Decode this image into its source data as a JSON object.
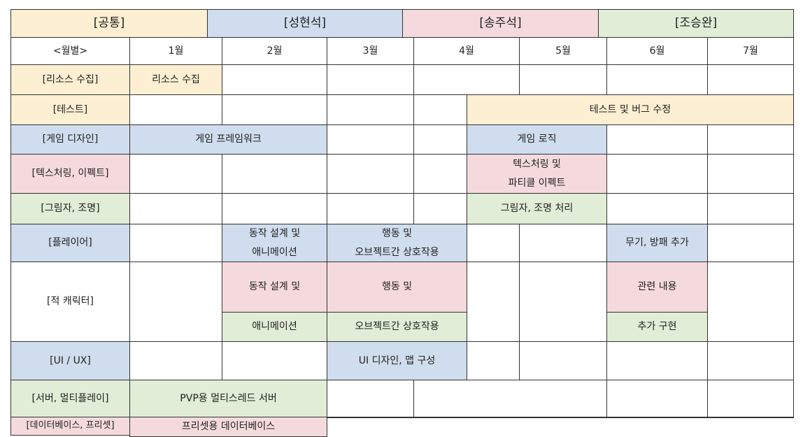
{
  "team_headers": [
    {
      "label": "[공통]",
      "color": "gold"
    },
    {
      "label": "[성현석]",
      "color": "blue"
    },
    {
      "label": "[송주석]",
      "color": "pink"
    },
    {
      "label": "[조승완]",
      "color": "green"
    }
  ],
  "month_row": {
    "label": "<월별>",
    "months": [
      "1월",
      "2월",
      "3월",
      "4월",
      "5월",
      "6월",
      "7월"
    ]
  },
  "rows": [
    {
      "category": "[리소스 수집]",
      "color": "gold",
      "tasks": [
        {
          "lines": [
            "리소스 수집"
          ],
          "color": "gold"
        }
      ]
    },
    {
      "category": "[테스트]",
      "color": "gold",
      "tasks": [
        {
          "lines": [
            "테스트 및 버그 수정"
          ],
          "color": "gold"
        }
      ]
    },
    {
      "category": "[게임 디자인]",
      "color": "blue",
      "tasks": [
        {
          "lines": [
            "게임 프레임워크"
          ],
          "color": "blue"
        },
        {
          "lines": [
            "게임 로직"
          ],
          "color": "blue"
        }
      ]
    },
    {
      "category": "[텍스처링, 이펙트]",
      "color": "pink",
      "tasks": [
        {
          "lines": [
            "텍스처링 및",
            "파티클 이펙트"
          ],
          "color": "pink"
        }
      ]
    },
    {
      "category": "[그림자, 조명]",
      "color": "green",
      "tasks": [
        {
          "lines": [
            "그림자, 조명 처리"
          ],
          "color": "green"
        }
      ]
    },
    {
      "category": "[플레이어]",
      "color": "blue",
      "tasks": [
        {
          "lines": [
            "동작 설계 및",
            "애니메이션"
          ],
          "color": "blue"
        },
        {
          "lines": [
            "행동 및",
            "오브젝트간 상호작용"
          ],
          "color": "blue"
        },
        {
          "lines": [
            "무기, 방패 추가"
          ],
          "color": "blue"
        }
      ]
    },
    {
      "category": "[적 캐릭터]",
      "color": "white",
      "tasks": [
        {
          "lines": [
            "동작 설계 및"
          ],
          "color": "pink"
        },
        {
          "lines": [
            "행동 및"
          ],
          "color": "pink"
        },
        {
          "lines": [
            "관련 내용"
          ],
          "color": "pink"
        },
        {
          "lines": [
            "애니메이션"
          ],
          "color": "green"
        },
        {
          "lines": [
            "오브젝트간 상호작용"
          ],
          "color": "green"
        },
        {
          "lines": [
            "추가 구현"
          ],
          "color": "green"
        }
      ]
    },
    {
      "category": "[UI / UX]",
      "color": "blue",
      "tasks": [
        {
          "lines": [
            "UI 디자인, 맵 구성"
          ],
          "color": "blue"
        }
      ]
    },
    {
      "category": "[서버, 멀티플레이]",
      "color": "green",
      "tasks": [
        {
          "lines": [
            "PVP용 멀티스레드 서버"
          ],
          "color": "green"
        }
      ]
    },
    {
      "category": "[데이터베이스, 프리셋]",
      "color": "pink",
      "tasks": [
        {
          "lines": [
            "프리셋용 데이터베이스"
          ],
          "color": "pink"
        }
      ]
    }
  ]
}
